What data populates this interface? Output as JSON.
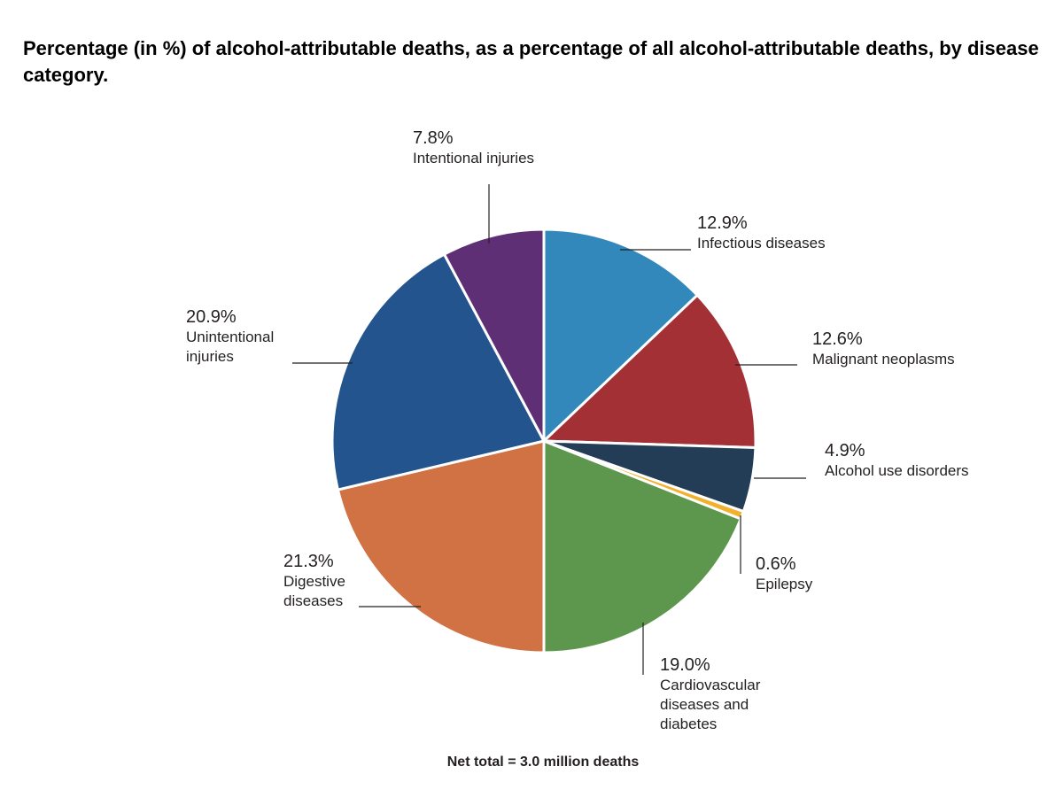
{
  "chart_data": {
    "type": "pie",
    "title": "Percentage (in %) of alcohol-attributable deaths, as a percentage of all alcohol-attributable deaths, by disease category.",
    "footnote": "Net total = 3.0 million deaths",
    "slices": [
      {
        "label": "Infectious diseases",
        "value": 12.9,
        "value_label": "12.9%",
        "color": "#3388bb"
      },
      {
        "label": "Malignant neoplasms",
        "value": 12.6,
        "value_label": "12.6%",
        "color": "#a33035"
      },
      {
        "label": "Alcohol use disorders",
        "value": 4.9,
        "value_label": "4.9%",
        "color": "#243d57"
      },
      {
        "label": "Epilepsy",
        "value": 0.6,
        "value_label": "0.6%",
        "color": "#f2b12c"
      },
      {
        "label": "Cardiovascular diseases and diabetes",
        "value": 19.0,
        "value_label": "19.0%",
        "color": "#5d964d"
      },
      {
        "label": "Digestive diseases",
        "value": 21.3,
        "value_label": "21.3%",
        "color": "#d07243"
      },
      {
        "label": "Unintentional injuries",
        "value": 20.9,
        "value_label": "20.9%",
        "color": "#23548d"
      },
      {
        "label": "Intentional injuries",
        "value": 7.8,
        "value_label": "7.8%",
        "color": "#5e2f75"
      }
    ]
  }
}
